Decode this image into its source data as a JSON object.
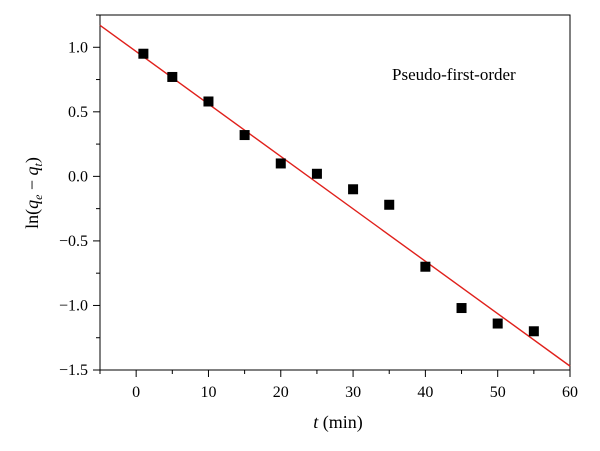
{
  "chart_data": {
    "type": "scatter",
    "annotation": "Pseudo-first-order",
    "xlabel": {
      "var": "t",
      "unit": " (min)"
    },
    "ylabel": {
      "prefix": "ln(",
      "q1": "q",
      "sub1": "e",
      "minus": " − ",
      "q2": "q",
      "sub2": "t",
      "suffix": ")"
    },
    "xlim": [
      -5,
      60
    ],
    "ylim": [
      -1.5,
      1.25
    ],
    "x_ticks": [
      0,
      10,
      20,
      30,
      40,
      50,
      60
    ],
    "x_tick_labels": [
      "0",
      "10",
      "20",
      "30",
      "40",
      "50",
      "60"
    ],
    "y_ticks": [
      -1.5,
      -1.0,
      -0.5,
      0.0,
      0.5,
      1.0
    ],
    "y_tick_labels": [
      "−1.5",
      "−1.0",
      "−0.5",
      "0.0",
      "0.5",
      "1.0"
    ],
    "grid": false,
    "series": [
      {
        "kind": "points",
        "x": [
          1,
          5,
          10,
          15,
          20,
          25,
          30,
          35,
          40,
          45,
          50,
          55
        ],
        "y": [
          0.95,
          0.77,
          0.58,
          0.32,
          0.1,
          0.02,
          -0.1,
          -0.22,
          -0.7,
          -1.02,
          -1.14,
          -1.2
        ]
      },
      {
        "kind": "fit-line",
        "x": [
          -5,
          60
        ],
        "y": [
          1.17,
          -1.47
        ]
      }
    ],
    "colors": {
      "points": "#000000",
      "fit": "#e0201b",
      "axis": "#000000"
    }
  }
}
